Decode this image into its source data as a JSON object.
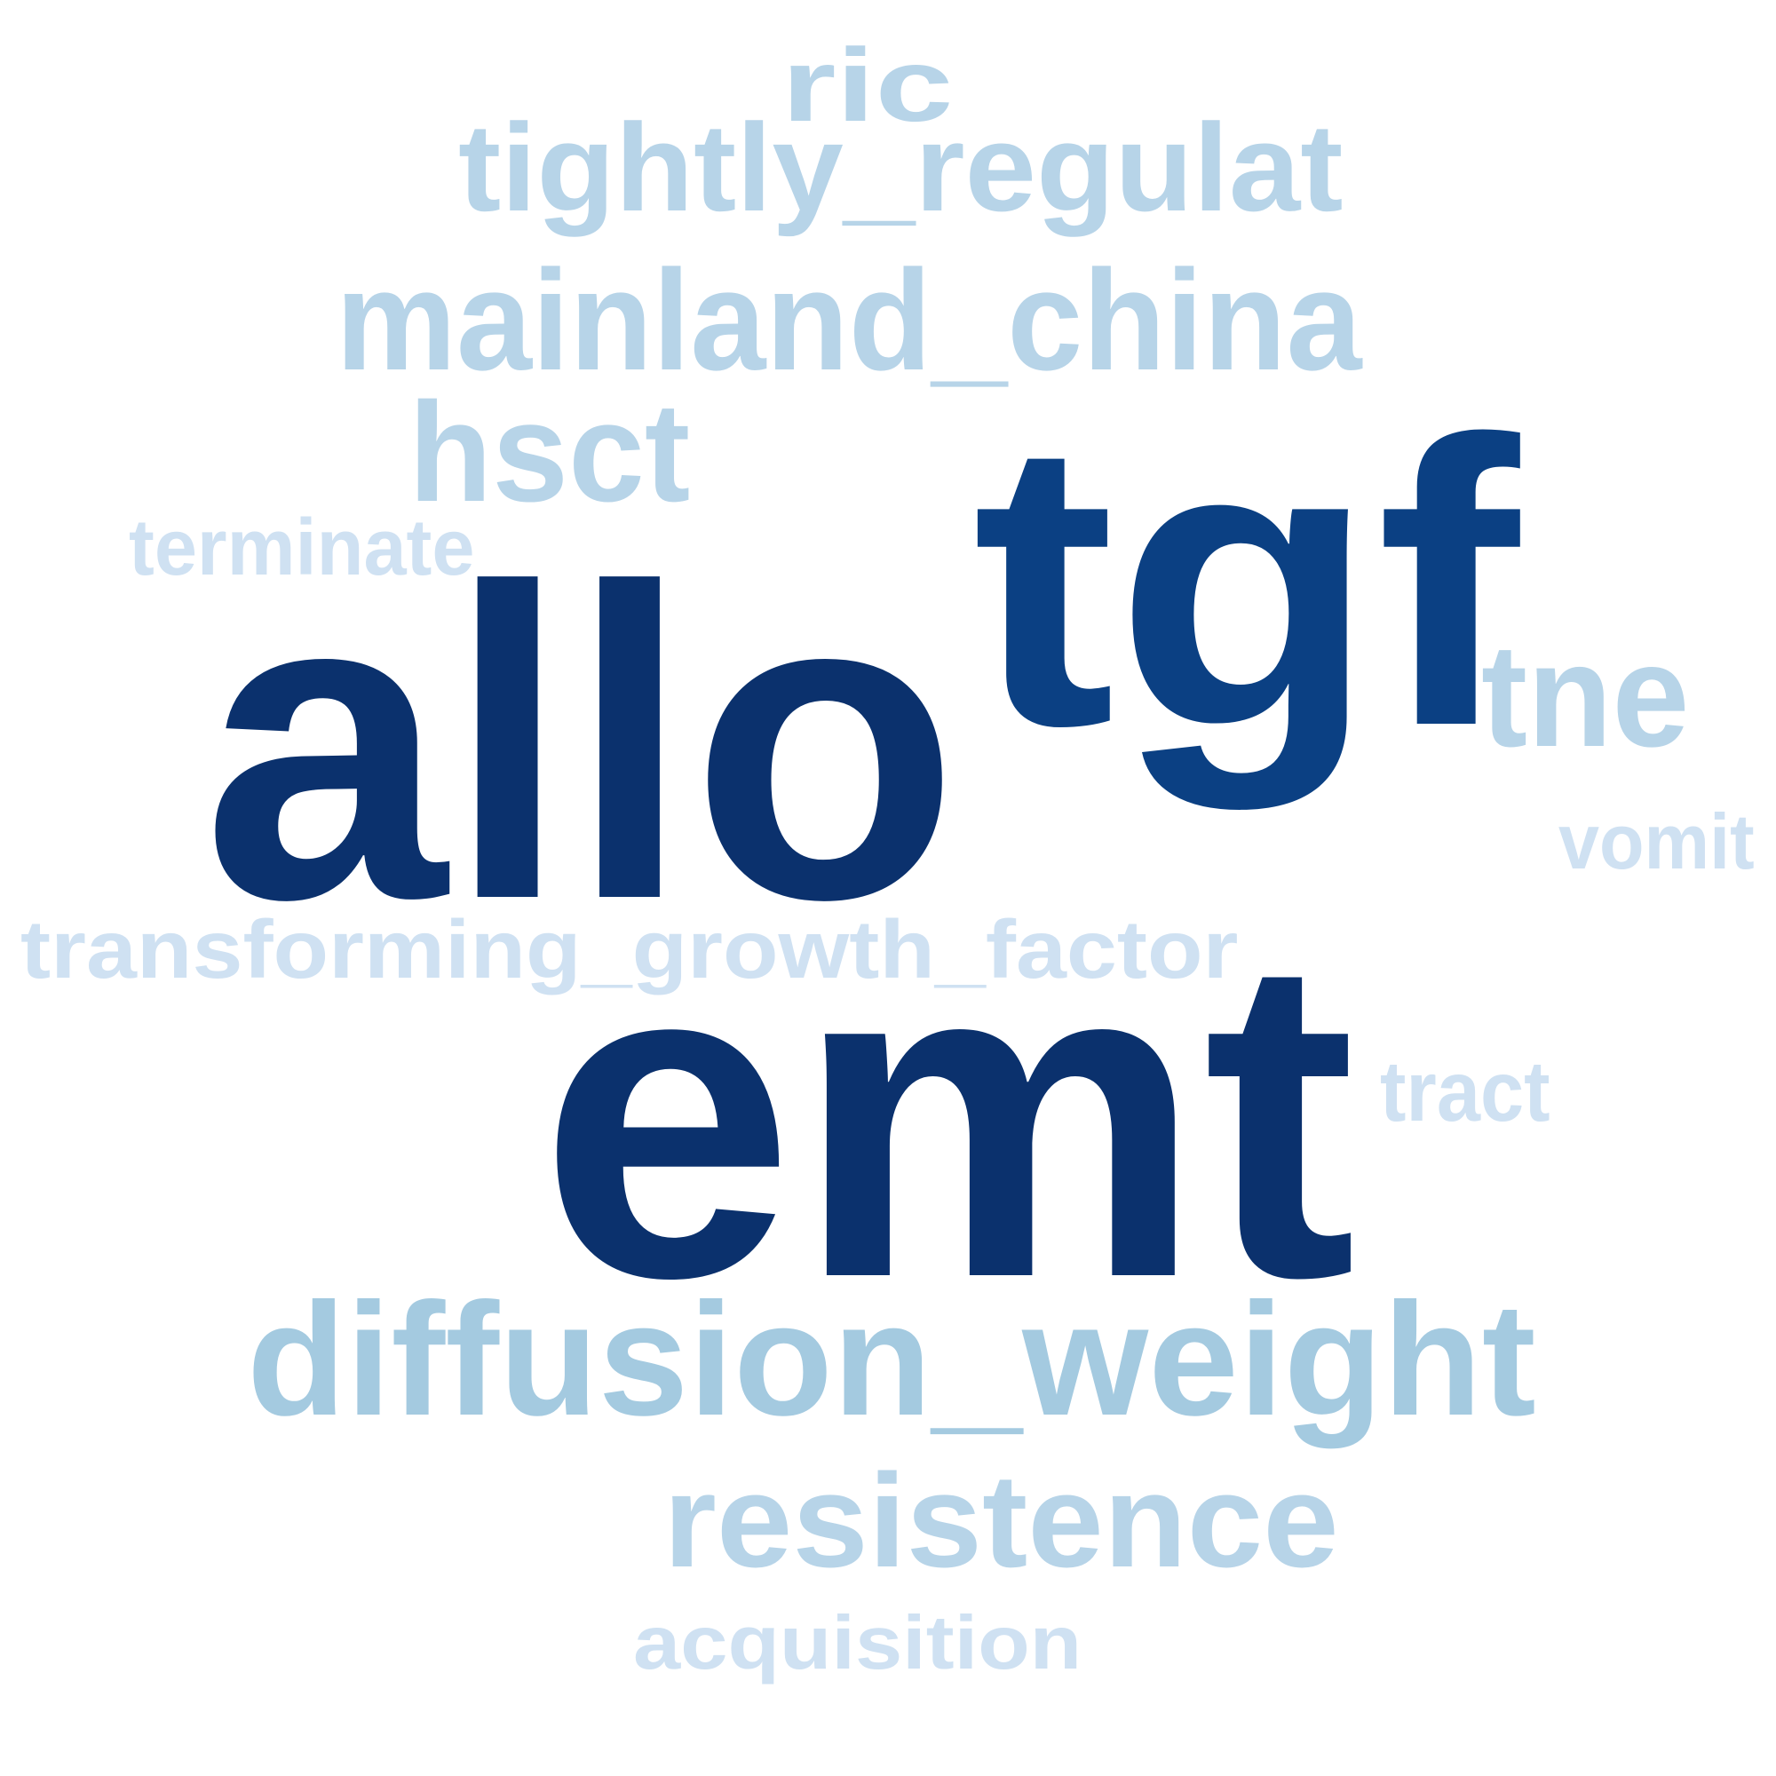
{
  "word_cloud": {
    "words": [
      {
        "text": "ric",
        "color": "#b7d4e8"
      },
      {
        "text": "tightly_regulat",
        "color": "#b7d4e8"
      },
      {
        "text": "mainland_china",
        "color": "#b7d4e8"
      },
      {
        "text": "hsct",
        "color": "#b7d4e8"
      },
      {
        "text": "terminate",
        "color": "#cfe1f2"
      },
      {
        "text": "allo",
        "color": "#0b316d"
      },
      {
        "text": "tgf",
        "color": "#0b4083"
      },
      {
        "text": "tne",
        "color": "#b7d4e8"
      },
      {
        "text": "vomit",
        "color": "#cfe1f2"
      },
      {
        "text": "transforming_growth_factor",
        "color": "#cfe1f2"
      },
      {
        "text": "emt",
        "color": "#0b316d"
      },
      {
        "text": "tract",
        "color": "#cfe1f2"
      },
      {
        "text": "diffusion_weight",
        "color": "#a4cae0"
      },
      {
        "text": "resistence",
        "color": "#b7d4e8"
      },
      {
        "text": "acquisition",
        "color": "#cfe1f2"
      }
    ]
  }
}
